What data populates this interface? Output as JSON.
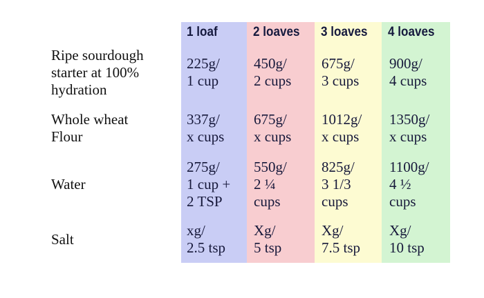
{
  "colors": {
    "col_1": "#c9cdf5",
    "col_2": "#f8cdd0",
    "col_3": "#fdfbd2",
    "col_4": "#d3f4d2"
  },
  "headers": [
    "1 loaf",
    "2 loaves",
    "3 loaves",
    "4 loaves"
  ],
  "rows": [
    {
      "label": [
        "Ripe sourdough",
        "starter at 100%",
        "hydration"
      ],
      "cells": [
        [
          "225g/",
          "1 cup"
        ],
        [
          "450g/",
          "2 cups"
        ],
        [
          "675g/",
          "3 cups"
        ],
        [
          "900g/",
          "4 cups"
        ]
      ]
    },
    {
      "label": [
        "Whole wheat",
        "Flour"
      ],
      "cells": [
        [
          "337g/",
          "x cups"
        ],
        [
          "675g/",
          "x cups"
        ],
        [
          "1012g/",
          "x cups"
        ],
        [
          "1350g/",
          "x cups"
        ]
      ]
    },
    {
      "label": [
        "Water"
      ],
      "cells": [
        [
          "275g/",
          "1 cup +",
          "2 TSP"
        ],
        [
          "550g/",
          "2 ¼",
          "cups"
        ],
        [
          "825g/",
          "3 1/3",
          "cups"
        ],
        [
          "1100g/",
          "4 ½",
          "cups"
        ]
      ]
    },
    {
      "label": [
        "Salt"
      ],
      "cells": [
        [
          "xg/",
          "2.5 tsp"
        ],
        [
          "Xg/",
          "5 tsp"
        ],
        [
          "Xg/",
          "7.5 tsp"
        ],
        [
          "Xg/",
          "10 tsp"
        ]
      ]
    }
  ]
}
